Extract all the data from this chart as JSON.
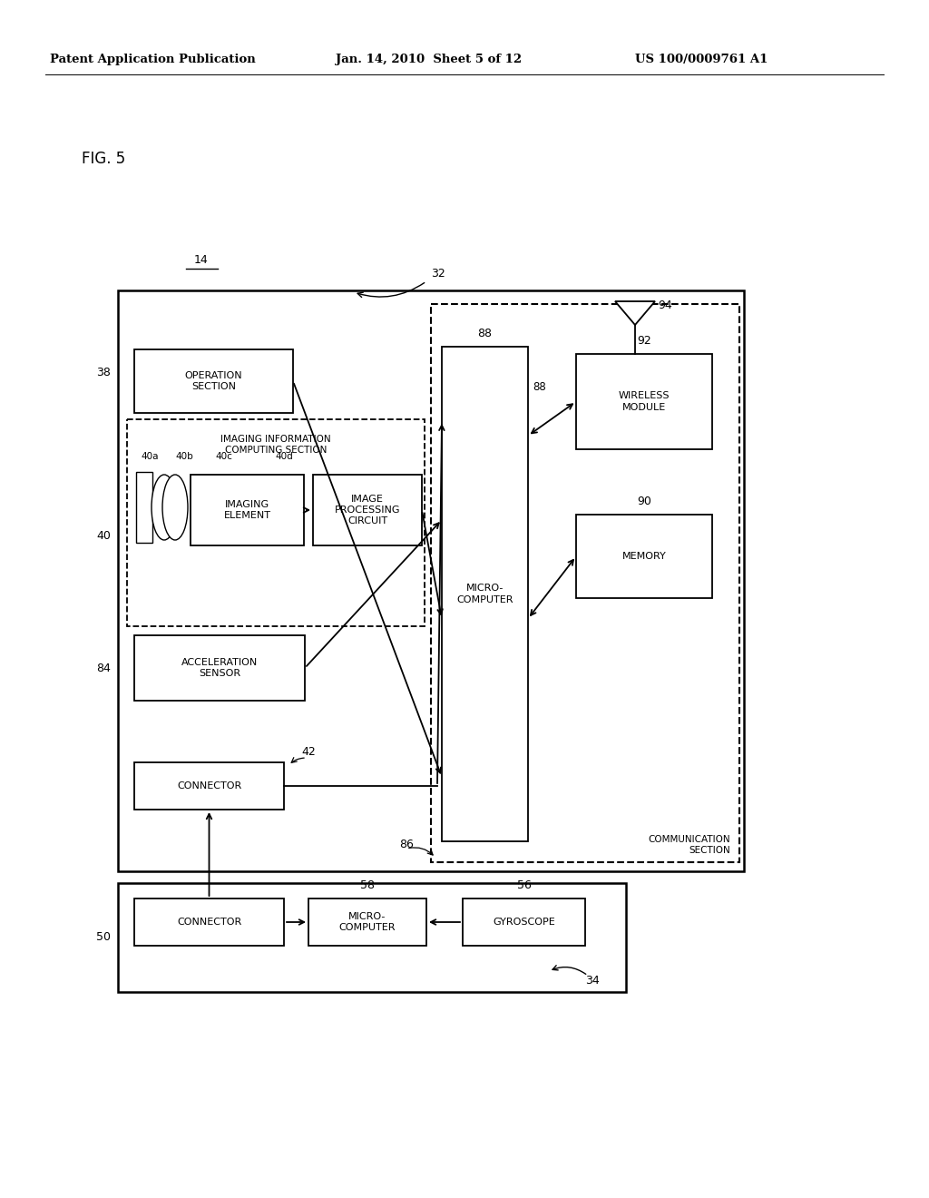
{
  "bg_color": "#ffffff",
  "patent_left": "Patent Application Publication",
  "patent_mid": "Jan. 14, 2010  Sheet 5 of 12",
  "patent_right": "US 100/0009761 A1",
  "fig_label": "FIG. 5",
  "box_operation": "OPERATION\nSECTION",
  "box_imaging_info": "IMAGING INFORMATION\nCOMPUTING SECTION",
  "box_imaging_element": "IMAGING\nELEMENT",
  "box_image_processing": "IMAGE\nPROCESSING\nCIRCUIT",
  "box_microcomputer": "MICRO-\nCOMPUTER",
  "box_wireless": "WIRELESS\nMODULE",
  "box_memory": "MEMORY",
  "box_acceleration": "ACCELERATION\nSENSOR",
  "box_connector1": "CONNECTOR",
  "box_connector2": "CONNECTOR",
  "box_microcomputer2": "MICRO-\nCOMPUTER",
  "box_gyroscope": "GYROSCOPE",
  "label_comm": "COMMUNICATION\nSECTION",
  "lbl_14": "14",
  "lbl_32": "32",
  "lbl_34": "34",
  "lbl_38": "38",
  "lbl_40": "40",
  "lbl_40a": "40a",
  "lbl_40b": "40b",
  "lbl_40c": "40c",
  "lbl_40d": "40d",
  "lbl_42": "42",
  "lbl_50": "50",
  "lbl_56": "56",
  "lbl_58": "58",
  "lbl_84": "84",
  "lbl_86": "86",
  "lbl_88": "88",
  "lbl_90": "90",
  "lbl_92": "92",
  "lbl_94": "94"
}
